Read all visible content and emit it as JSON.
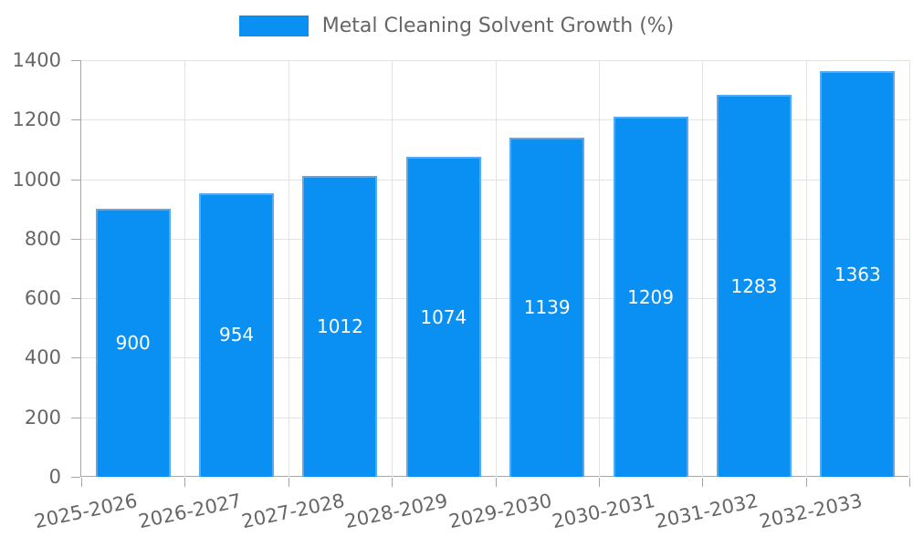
{
  "chart_data": {
    "type": "bar",
    "legend_label": "Metal Cleaning Solvent Growth (%)",
    "categories": [
      "2025-2026",
      "2026-2027",
      "2027-2028",
      "2028-2029",
      "2029-2030",
      "2030-2031",
      "2031-2032",
      "2032-2033"
    ],
    "values": [
      900,
      954,
      1012,
      1074,
      1139,
      1209,
      1283,
      1363
    ],
    "xlabel": "",
    "ylabel": "",
    "ylim": [
      0,
      1400
    ],
    "ytick_step": 200,
    "grid": true,
    "legend_position": "top-center",
    "bar_label_position": "inside-center",
    "colors": {
      "bar_fill": "#0a90f2",
      "bar_border": "#57aaf0",
      "bar_label_text": "#ffffff",
      "axis_line": "#a6a6a6",
      "gridline": "#e3e3e3",
      "tick_text": "#666666",
      "legend_text": "#666666",
      "background": "#ffffff"
    }
  }
}
